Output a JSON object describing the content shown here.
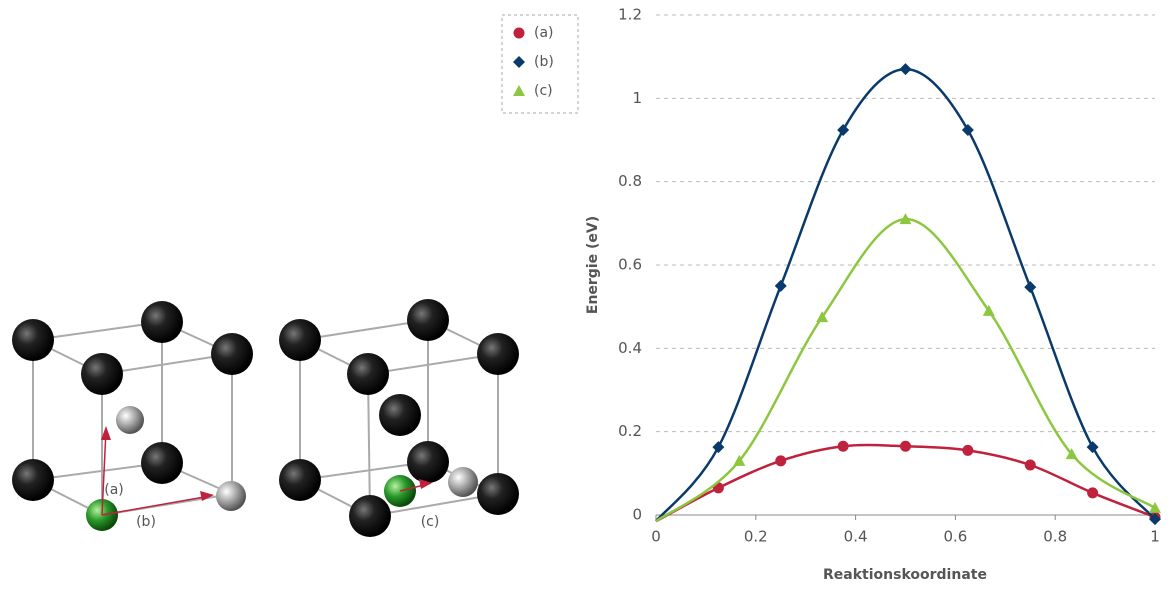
{
  "diagram": {
    "labels": [
      "(a)",
      "(b)",
      "(c)"
    ]
  },
  "chart_data": {
    "type": "line",
    "x_label": "Reaktionskoordinate",
    "y_label": "Energie (eV)",
    "xlim": [
      0,
      1
    ],
    "ylim": [
      0,
      1.2
    ],
    "xticks": [
      0,
      0.2,
      0.4,
      0.6,
      0.8,
      1
    ],
    "yticks": [
      0,
      0.2,
      0.4,
      0.6,
      0.8,
      1,
      1.2
    ],
    "grid": true,
    "legend": "top-left",
    "series": [
      {
        "name": "(a)",
        "color": "#c0213c",
        "marker": "circle",
        "x": [
          0,
          0.125,
          0.25,
          0.375,
          0.5,
          0.625,
          0.75,
          0.875,
          1
        ],
        "values": [
          -0.015,
          0.065,
          0.13,
          0.165,
          0.165,
          0.155,
          0.12,
          0.053,
          -0.005
        ]
      },
      {
        "name": "(b)",
        "color": "#0a3a6b",
        "marker": "diamond",
        "x": [
          0,
          0.125,
          0.25,
          0.375,
          0.5,
          0.625,
          0.75,
          0.875,
          1
        ],
        "values": [
          -0.015,
          0.163,
          0.55,
          0.924,
          1.07,
          0.924,
          0.547,
          0.163,
          -0.01
        ]
      },
      {
        "name": "(c)",
        "color": "#8dc63f",
        "marker": "triangle",
        "x": [
          0,
          0.167,
          0.333,
          0.5,
          0.667,
          0.833,
          1
        ],
        "values": [
          -0.015,
          0.13,
          0.475,
          0.71,
          0.49,
          0.146,
          0.017
        ]
      }
    ]
  }
}
